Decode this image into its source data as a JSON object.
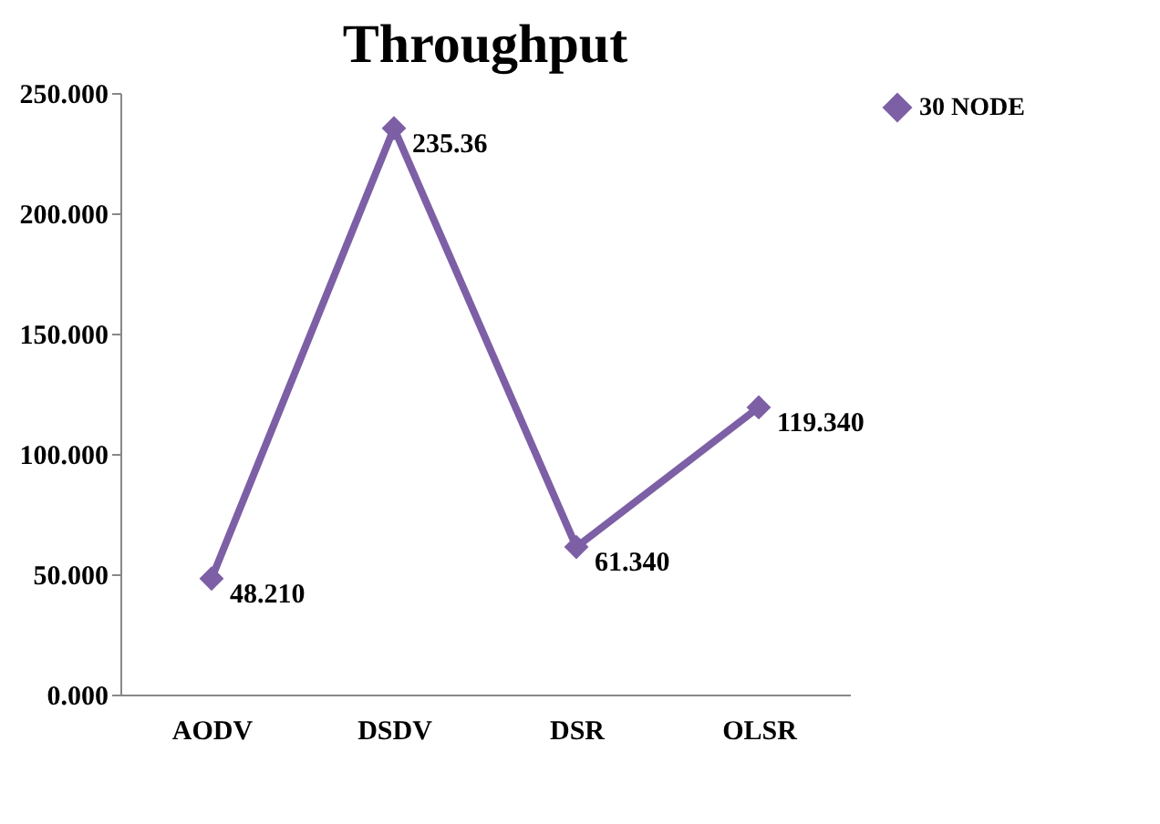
{
  "chart_data": {
    "type": "line",
    "title": "Throughput",
    "categories": [
      "AODV",
      "DSDV",
      "DSR",
      "OLSR"
    ],
    "series": [
      {
        "name": "30 NODE",
        "color": "#7d5fa6",
        "values": [
          48.21,
          235.36,
          61.34,
          119.34
        ],
        "value_labels": [
          "48.210",
          "235.36",
          "61.340",
          "119.340"
        ]
      }
    ],
    "ylim": [
      0,
      250
    ],
    "yticks": [
      {
        "value": 0,
        "label": "0.000"
      },
      {
        "value": 50,
        "label": "50.000"
      },
      {
        "value": 100,
        "label": "100.000"
      },
      {
        "value": 150,
        "label": "150.000"
      },
      {
        "value": 200,
        "label": "200.000"
      },
      {
        "value": 250,
        "label": "250.000"
      }
    ],
    "grid": false,
    "legend": "right",
    "marker": "diamond",
    "line_style": "solid"
  }
}
